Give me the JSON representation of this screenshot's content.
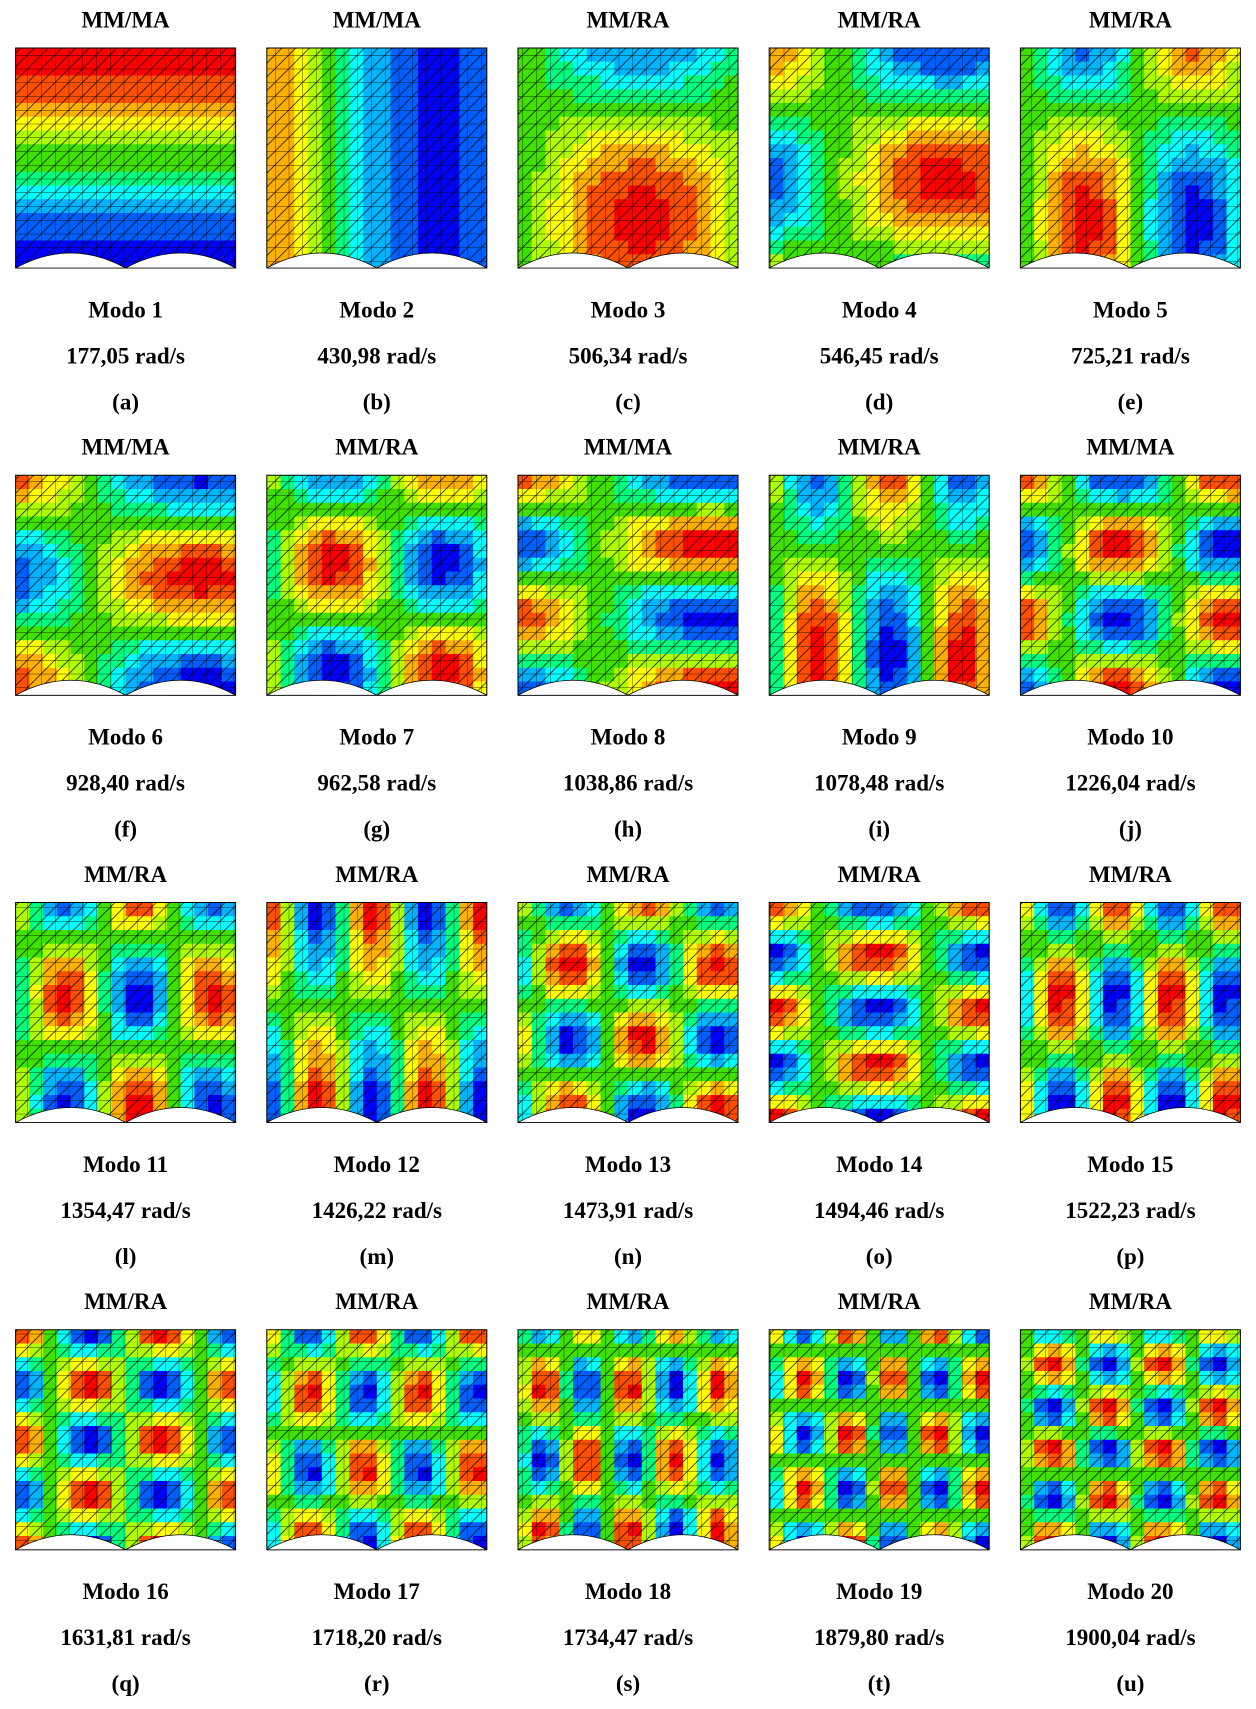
{
  "panels": [
    {
      "header": "MM/MA",
      "mode": "Modo 1",
      "frequency": "177,05 rad/s",
      "label": "(a)"
    },
    {
      "header": "MM/MA",
      "mode": "Modo 2",
      "frequency": "430,98 rad/s",
      "label": "(b)"
    },
    {
      "header": "MM/RA",
      "mode": "Modo 3",
      "frequency": "506,34 rad/s",
      "label": "(c)"
    },
    {
      "header": "MM/RA",
      "mode": "Modo 4",
      "frequency": "546,45 rad/s",
      "label": "(d)"
    },
    {
      "header": "MM/RA",
      "mode": "Modo 5",
      "frequency": "725,21 rad/s",
      "label": "(e)"
    },
    {
      "header": "MM/MA",
      "mode": "Modo 6",
      "frequency": "928,40 rad/s",
      "label": "(f)"
    },
    {
      "header": "MM/RA",
      "mode": "Modo 7",
      "frequency": "962,58 rad/s",
      "label": "(g)"
    },
    {
      "header": "MM/MA",
      "mode": "Modo 8",
      "frequency": "1038,86 rad/s",
      "label": "(h)"
    },
    {
      "header": "MM/RA",
      "mode": "Modo 9",
      "frequency": "1078,48 rad/s",
      "label": "(i)"
    },
    {
      "header": "MM/MA",
      "mode": "Modo 10",
      "frequency": "1226,04 rad/s",
      "label": "(j)"
    },
    {
      "header": "MM/RA",
      "mode": "Modo 11",
      "frequency": "1354,47 rad/s",
      "label": "(l)"
    },
    {
      "header": "MM/RA",
      "mode": "Modo 12",
      "frequency": "1426,22 rad/s",
      "label": "(m)"
    },
    {
      "header": "MM/RA",
      "mode": "Modo 13",
      "frequency": "1473,91 rad/s",
      "label": "(n)"
    },
    {
      "header": "MM/RA",
      "mode": "Modo 14",
      "frequency": "1494,46 rad/s",
      "label": "(o)"
    },
    {
      "header": "MM/RA",
      "mode": "Modo 15",
      "frequency": "1522,23 rad/s",
      "label": "(p)"
    },
    {
      "header": "MM/RA",
      "mode": "Modo 16",
      "frequency": "1631,81 rad/s",
      "label": "(q)"
    },
    {
      "header": "MM/RA",
      "mode": "Modo 17",
      "frequency": "1718,20 rad/s",
      "label": "(r)"
    },
    {
      "header": "MM/RA",
      "mode": "Modo 18",
      "frequency": "1734,47 rad/s",
      "label": "(s)"
    },
    {
      "header": "MM/RA",
      "mode": "Modo 19",
      "frequency": "1879,80 rad/s",
      "label": "(t)"
    },
    {
      "header": "MM/RA",
      "mode": "Modo 20",
      "frequency": "1900,04 rad/s",
      "label": "(u)"
    }
  ]
}
